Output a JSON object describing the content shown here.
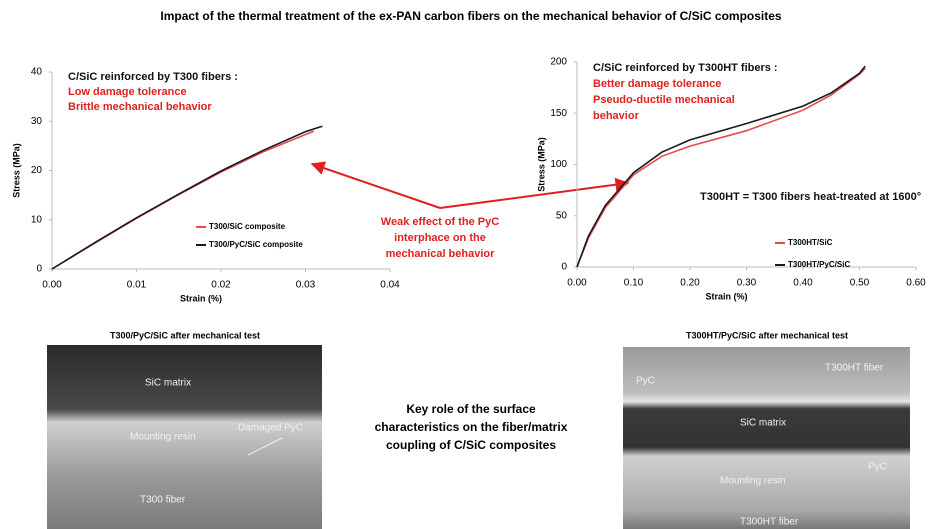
{
  "title": "Impact of the thermal treatment of the ex-PAN carbon fibers on the mechanical behavior of C/SiC composites",
  "chart_data": [
    {
      "type": "line",
      "xlabel": "Strain  (%)",
      "ylabel": "Stress (MPa)",
      "xlim": [
        0,
        0.04
      ],
      "xticks": [
        {
          "value": 0,
          "label": "0.00"
        },
        {
          "value": 0.01,
          "label": "0.01"
        },
        {
          "value": 0.02,
          "label": "0.02"
        },
        {
          "value": 0.03,
          "label": "0.03"
        },
        {
          "value": 0.04,
          "label": "0.04"
        }
      ],
      "ylim": [
        0,
        40
      ],
      "yticks": [
        0,
        10,
        20,
        30,
        40
      ],
      "series": [
        {
          "name": "T300/SiC composite",
          "color": "#e8474b",
          "x": [
            0,
            0.005,
            0.01,
            0.015,
            0.02,
            0.025,
            0.03,
            0.031
          ],
          "values": [
            0,
            5.2,
            10.3,
            15.1,
            19.7,
            23.8,
            27.3,
            28
          ]
        },
        {
          "name": "T300/PyC/SiC composite",
          "color": "#1a1a1a",
          "x": [
            0,
            0.005,
            0.01,
            0.015,
            0.02,
            0.025,
            0.03,
            0.032
          ],
          "values": [
            0,
            5.3,
            10.4,
            15.2,
            19.9,
            24.1,
            27.9,
            29
          ]
        }
      ],
      "annotations": [
        {
          "text": "C/SiC reinforced by T300 fibers :",
          "color": "#111111"
        },
        {
          "text": "Low damage tolerance",
          "color": "#e02020"
        },
        {
          "text": "Brittle mechanical behavior",
          "color": "#e02020"
        }
      ]
    },
    {
      "type": "line",
      "xlabel": "Strain (%)",
      "ylabel": "Stress (MPa)",
      "xlim": [
        0,
        0.6
      ],
      "xticks": [
        {
          "value": 0,
          "label": "0.00"
        },
        {
          "value": 0.1,
          "label": "0.10"
        },
        {
          "value": 0.2,
          "label": "0.20"
        },
        {
          "value": 0.3,
          "label": "0.30"
        },
        {
          "value": 0.4,
          "label": "0.40"
        },
        {
          "value": 0.5,
          "label": "0.50"
        },
        {
          "value": 0.6,
          "label": "0.60"
        }
      ],
      "ylim": [
        0,
        200
      ],
      "yticks": [
        0,
        50,
        100,
        150,
        200
      ],
      "series": [
        {
          "name": "T300HT/SiC",
          "color": "#e8474b",
          "x": [
            0,
            0.02,
            0.05,
            0.1,
            0.15,
            0.2,
            0.3,
            0.4,
            0.45,
            0.5,
            0.51
          ],
          "values": [
            0,
            28,
            58,
            90,
            108,
            118,
            133,
            153,
            168,
            188,
            194
          ]
        },
        {
          "name": "T300HT/PyC/SiC",
          "color": "#1a1a1a",
          "x": [
            0,
            0.02,
            0.05,
            0.1,
            0.15,
            0.2,
            0.3,
            0.4,
            0.45,
            0.5,
            0.51
          ],
          "values": [
            0,
            30,
            60,
            92,
            112,
            124,
            140,
            157,
            170,
            189,
            196
          ]
        }
      ],
      "annotations": [
        {
          "text": "C/SiC reinforced by T300HT fibers :",
          "color": "#111111"
        },
        {
          "text": "Better damage tolerance",
          "color": "#e02020"
        },
        {
          "text": "Pseudo-ductile mechanical",
          "color": "#e02020"
        },
        {
          "text": "behavior",
          "color": "#e02020"
        },
        {
          "text": "T300HT = T300 fibers heat-treated at 1600°",
          "color": "#111111"
        }
      ]
    }
  ],
  "center_note": [
    "Weak effect of the PyC",
    "interphace on the",
    "mechanical behavior"
  ],
  "key_note": [
    "Key role of the surface",
    "characteristics on the fiber/matrix",
    "coupling of C/SiC composites"
  ],
  "images": [
    {
      "caption": "T300/PyC/SiC after mechanical test",
      "labels": [
        "SiC matrix",
        "Mounting resin",
        "Damaged PyC",
        "T300 fiber"
      ]
    },
    {
      "caption": "T300HT/PyC/SiC after mechanical test",
      "labels": [
        "T300HT fiber",
        "PyC",
        "SiC matrix",
        "PyC",
        "Mounting resin",
        "T300HT fiber"
      ]
    }
  ]
}
